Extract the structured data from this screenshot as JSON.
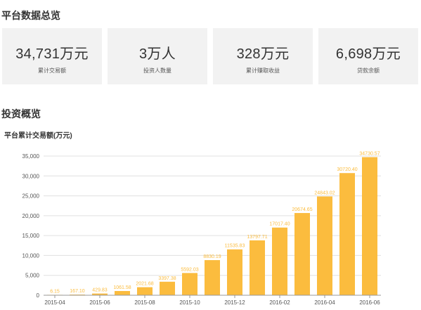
{
  "overview": {
    "title": "平台数据总览",
    "cards": [
      {
        "value": "34,731万元",
        "label": "累计交易额"
      },
      {
        "value": "3万人",
        "label": "投资人数量"
      },
      {
        "value": "328万元",
        "label": "累计赚取收益"
      },
      {
        "value": "6,698万元",
        "label": "贷款余额"
      }
    ]
  },
  "invest": {
    "title": "投资概览",
    "chart_title": "平台累计交易额(万元)"
  },
  "colors": {
    "bar": "#fbbc3e",
    "grid": "#e0e0e0",
    "axis_text": "#555555"
  },
  "chart_data": {
    "type": "bar",
    "title": "平台累计交易额(万元)",
    "xlabel": "",
    "ylabel": "",
    "ylim": [
      0,
      35000
    ],
    "yticks": [
      0,
      5000,
      10000,
      15000,
      20000,
      25000,
      30000,
      35000
    ],
    "ytick_labels": [
      "0",
      "5,000",
      "10,000",
      "15,000",
      "20,000",
      "25,000",
      "30,000",
      "35,000"
    ],
    "categories": [
      "2015-04",
      "2015-05",
      "2015-06",
      "2015-07",
      "2015-08",
      "2015-09",
      "2015-10",
      "2015-11",
      "2015-12",
      "2016-01",
      "2016-02",
      "2016-03",
      "2016-04",
      "2016-05",
      "2016-06"
    ],
    "xtick_labels": [
      "2015-04",
      "2015-06",
      "2015-08",
      "2015-10",
      "2015-12",
      "2016-02",
      "2016-04",
      "2016-06"
    ],
    "values": [
      6.15,
      167.1,
      429.83,
      1061.58,
      2021.68,
      3397.38,
      5592.03,
      8830.19,
      11535.83,
      13797.71,
      17017.4,
      20674.65,
      24843.02,
      30720.4,
      34730.57
    ],
    "data_labels": [
      "6.15",
      "167.10",
      "429.83",
      "1061.58",
      "2021.68",
      "3397.38",
      "5592.03",
      "8830.19",
      "11535.83",
      "13797.71",
      "17017.40",
      "20674.65",
      "24843.02",
      "30720.40",
      "34730.57"
    ],
    "grid": true,
    "legend": "none"
  }
}
